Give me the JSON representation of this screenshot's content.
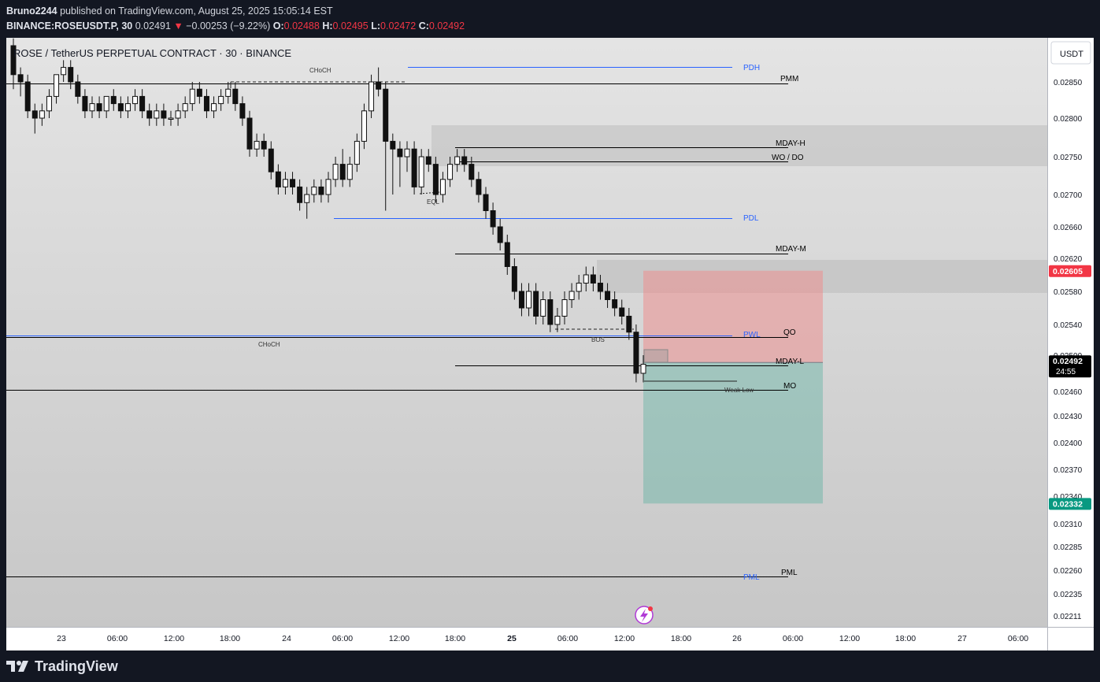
{
  "header": {
    "author": "Bruno2244",
    "published_text": "published on TradingView.com, August 25, 2025 15:05:14 EST",
    "symbol_line": "BINANCE:ROSEUSDT.P, 30",
    "last": "0.02491",
    "change_arrow": "▼",
    "change": "−0.00253 (−9.22%)",
    "o_label": "O:",
    "o": "0.02488",
    "h_label": "H:",
    "h": "0.02495",
    "l_label": "L:",
    "l": "0.02472",
    "c_label": "C:",
    "c": "0.02492"
  },
  "chart_data": {
    "type": "candlestick",
    "title": "ROSE / TetherUS PERPETUAL CONTRACT · 30 · BINANCE",
    "currency_button": "USDT",
    "y_ticks": [
      "0.02850",
      "0.02800",
      "0.02750",
      "0.02700",
      "0.02660",
      "0.02620",
      "0.02580",
      "0.02540",
      "0.02500",
      "0.02460",
      "0.02430",
      "0.02400",
      "0.02370",
      "0.02340",
      "0.02310",
      "0.02285",
      "0.02260",
      "0.02235",
      "0.02211"
    ],
    "x_ticks": [
      "23",
      "06:00",
      "12:00",
      "18:00",
      "24",
      "06:00",
      "12:00",
      "18:00",
      "25",
      "06:00",
      "12:00",
      "18:00",
      "26",
      "06:00",
      "12:00",
      "18:00",
      "27",
      "06:00"
    ],
    "bold_x_ticks": [
      "25"
    ],
    "price_tags": [
      {
        "label": "0.02605",
        "color": "#f23645"
      },
      {
        "label": "0.02492",
        "sub": "24:55",
        "color": "#000000"
      },
      {
        "label": "0.02332",
        "color": "#089981"
      }
    ],
    "levels": [
      {
        "label": "PDH",
        "color": "#2962ff"
      },
      {
        "label": "PMM",
        "color": "#000000"
      },
      {
        "label": "MDAY-H",
        "color": "#000000"
      },
      {
        "label": "WO / DO",
        "color": "#000000"
      },
      {
        "label": "PDL",
        "color": "#2962ff"
      },
      {
        "label": "MDAY-M",
        "color": "#000000"
      },
      {
        "label": "PWL",
        "color": "#2962ff"
      },
      {
        "label": "QO",
        "color": "#000000"
      },
      {
        "label": "MDAY-L",
        "color": "#000000"
      },
      {
        "label": "MO",
        "color": "#000000"
      },
      {
        "label": "PML",
        "color": "#000000"
      },
      {
        "label": "PML",
        "color": "#2962ff"
      }
    ],
    "annotations": [
      "CHoCH",
      "EQL",
      "CHoCH",
      "BOS",
      "Weak Low"
    ],
    "position": {
      "type": "short",
      "stop": 0.02605,
      "entry": 0.02492,
      "target": 0.02332
    },
    "candles_approx": [
      [
        0.029,
        0.0291,
        0.0284,
        0.0286
      ],
      [
        0.0286,
        0.0287,
        0.0283,
        0.0285
      ],
      [
        0.0285,
        0.0286,
        0.028,
        0.0281
      ],
      [
        0.0281,
        0.0282,
        0.0278,
        0.028
      ],
      [
        0.028,
        0.0282,
        0.0279,
        0.0281
      ],
      [
        0.0281,
        0.0284,
        0.028,
        0.0283
      ],
      [
        0.0283,
        0.0286,
        0.0282,
        0.0286
      ],
      [
        0.0286,
        0.0288,
        0.0285,
        0.0287
      ],
      [
        0.0287,
        0.0288,
        0.0284,
        0.0285
      ],
      [
        0.0285,
        0.0286,
        0.0282,
        0.0283
      ],
      [
        0.0283,
        0.0284,
        0.028,
        0.0281
      ],
      [
        0.0281,
        0.0283,
        0.028,
        0.0282
      ],
      [
        0.0282,
        0.0283,
        0.028,
        0.0281
      ],
      [
        0.0281,
        0.0283,
        0.028,
        0.0283
      ],
      [
        0.0283,
        0.0284,
        0.0281,
        0.0282
      ],
      [
        0.0282,
        0.0283,
        0.028,
        0.0281
      ],
      [
        0.0281,
        0.0283,
        0.028,
        0.0282
      ],
      [
        0.0282,
        0.0284,
        0.0281,
        0.0283
      ],
      [
        0.0283,
        0.0284,
        0.028,
        0.0281
      ],
      [
        0.0281,
        0.0282,
        0.0279,
        0.028
      ],
      [
        0.028,
        0.0282,
        0.0279,
        0.0281
      ],
      [
        0.0281,
        0.0282,
        0.0279,
        0.028
      ],
      [
        0.028,
        0.0281,
        0.0279,
        0.028
      ],
      [
        0.028,
        0.0282,
        0.0279,
        0.0281
      ],
      [
        0.0281,
        0.0283,
        0.028,
        0.0282
      ],
      [
        0.0282,
        0.0285,
        0.0281,
        0.0284
      ],
      [
        0.0284,
        0.0285,
        0.0282,
        0.0283
      ],
      [
        0.0283,
        0.0284,
        0.028,
        0.0281
      ],
      [
        0.0281,
        0.0283,
        0.028,
        0.0282
      ],
      [
        0.0282,
        0.0284,
        0.0281,
        0.0283
      ],
      [
        0.0283,
        0.0285,
        0.0282,
        0.0284
      ],
      [
        0.0284,
        0.0285,
        0.0281,
        0.0282
      ],
      [
        0.0282,
        0.0283,
        0.0279,
        0.028
      ],
      [
        0.028,
        0.0281,
        0.0275,
        0.0276
      ],
      [
        0.0276,
        0.0278,
        0.0275,
        0.0277
      ],
      [
        0.0277,
        0.0278,
        0.0275,
        0.0276
      ],
      [
        0.0276,
        0.0277,
        0.0272,
        0.0273
      ],
      [
        0.0273,
        0.0274,
        0.027,
        0.0271
      ],
      [
        0.0271,
        0.0273,
        0.027,
        0.0272
      ],
      [
        0.0272,
        0.0273,
        0.027,
        0.0271
      ],
      [
        0.0271,
        0.0272,
        0.0268,
        0.0269
      ],
      [
        0.0269,
        0.0271,
        0.0267,
        0.027
      ],
      [
        0.027,
        0.0272,
        0.0269,
        0.0271
      ],
      [
        0.0271,
        0.0272,
        0.0269,
        0.027
      ],
      [
        0.027,
        0.0273,
        0.0269,
        0.0272
      ],
      [
        0.0272,
        0.0275,
        0.0271,
        0.0274
      ],
      [
        0.0274,
        0.0276,
        0.0271,
        0.0272
      ],
      [
        0.0272,
        0.0275,
        0.0271,
        0.0274
      ],
      [
        0.0274,
        0.0278,
        0.0273,
        0.0277
      ],
      [
        0.0277,
        0.0282,
        0.0276,
        0.0281
      ],
      [
        0.0281,
        0.0286,
        0.028,
        0.0285
      ],
      [
        0.0285,
        0.0287,
        0.0283,
        0.0284
      ],
      [
        0.0284,
        0.0285,
        0.0268,
        0.0277
      ],
      [
        0.0277,
        0.0278,
        0.027,
        0.0276
      ],
      [
        0.0276,
        0.0277,
        0.0271,
        0.0275
      ],
      [
        0.0275,
        0.0277,
        0.0273,
        0.0276
      ],
      [
        0.0276,
        0.0277,
        0.027,
        0.0271
      ],
      [
        0.0271,
        0.0276,
        0.027,
        0.0275
      ],
      [
        0.0275,
        0.0276,
        0.0273,
        0.0274
      ],
      [
        0.0274,
        0.0275,
        0.0269,
        0.027
      ],
      [
        0.027,
        0.0273,
        0.0269,
        0.0272
      ],
      [
        0.0272,
        0.0275,
        0.0271,
        0.0274
      ],
      [
        0.0274,
        0.0276,
        0.0273,
        0.0275
      ],
      [
        0.0275,
        0.0276,
        0.0273,
        0.0274
      ],
      [
        0.0274,
        0.0275,
        0.0271,
        0.0272
      ],
      [
        0.0272,
        0.0273,
        0.0269,
        0.027
      ],
      [
        0.027,
        0.0271,
        0.0267,
        0.0268
      ],
      [
        0.0268,
        0.0269,
        0.0265,
        0.0266
      ],
      [
        0.0266,
        0.0267,
        0.0263,
        0.0264
      ],
      [
        0.0264,
        0.0265,
        0.026,
        0.0261
      ],
      [
        0.0261,
        0.0262,
        0.0257,
        0.0258
      ],
      [
        0.0258,
        0.0259,
        0.0255,
        0.0256
      ],
      [
        0.0256,
        0.0259,
        0.0255,
        0.0258
      ],
      [
        0.0258,
        0.0259,
        0.0254,
        0.0255
      ],
      [
        0.0255,
        0.0258,
        0.0254,
        0.0257
      ],
      [
        0.0257,
        0.0258,
        0.0253,
        0.0254
      ],
      [
        0.0254,
        0.0256,
        0.0253,
        0.0255
      ],
      [
        0.0255,
        0.0258,
        0.0254,
        0.0257
      ],
      [
        0.0257,
        0.0259,
        0.0256,
        0.0258
      ],
      [
        0.0258,
        0.026,
        0.0257,
        0.0259
      ],
      [
        0.0259,
        0.0261,
        0.0258,
        0.026
      ],
      [
        0.026,
        0.0261,
        0.0258,
        0.0259
      ],
      [
        0.0259,
        0.026,
        0.0257,
        0.0258
      ],
      [
        0.0258,
        0.0259,
        0.0256,
        0.0257
      ],
      [
        0.0257,
        0.0258,
        0.0255,
        0.0256
      ],
      [
        0.0256,
        0.0257,
        0.0254,
        0.0255
      ],
      [
        0.0255,
        0.0256,
        0.0252,
        0.0253
      ],
      [
        0.0253,
        0.0254,
        0.0247,
        0.0248
      ],
      [
        0.0248,
        0.025,
        0.0247,
        0.0249
      ]
    ]
  },
  "footer": {
    "brand": "TradingView"
  }
}
